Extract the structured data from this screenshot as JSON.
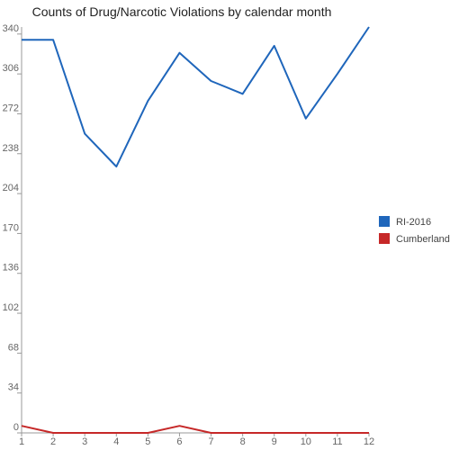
{
  "chart_data": {
    "type": "line",
    "title": "Counts of Drug/Narcotic Violations by calendar month",
    "xlabel": "",
    "ylabel": "",
    "x": [
      1,
      2,
      3,
      4,
      5,
      6,
      7,
      8,
      9,
      10,
      11,
      12
    ],
    "x_tick_labels": [
      "1",
      "2",
      "3",
      "4",
      "5",
      "6",
      "7",
      "8",
      "9",
      "10",
      "11",
      "12"
    ],
    "ylim": [
      0,
      346
    ],
    "y_ticks": [
      0,
      34,
      68,
      102,
      136,
      170,
      204,
      238,
      272,
      306,
      340
    ],
    "y_tick_labels": [
      "0",
      "34",
      "68",
      "102",
      "136",
      "170",
      "204",
      "238",
      "272",
      "306",
      "340"
    ],
    "grid": false,
    "legend_position": "right",
    "series": [
      {
        "name": "RI-2016",
        "color": "#1f66bb",
        "values": [
          335,
          335,
          255,
          227,
          283,
          324,
          300,
          289,
          330,
          268,
          306,
          346
        ]
      },
      {
        "name": "Cumberland",
        "color": "#c62828",
        "values": [
          6,
          0,
          0,
          0,
          0,
          6,
          0,
          0,
          0,
          0,
          0,
          0
        ]
      }
    ]
  }
}
